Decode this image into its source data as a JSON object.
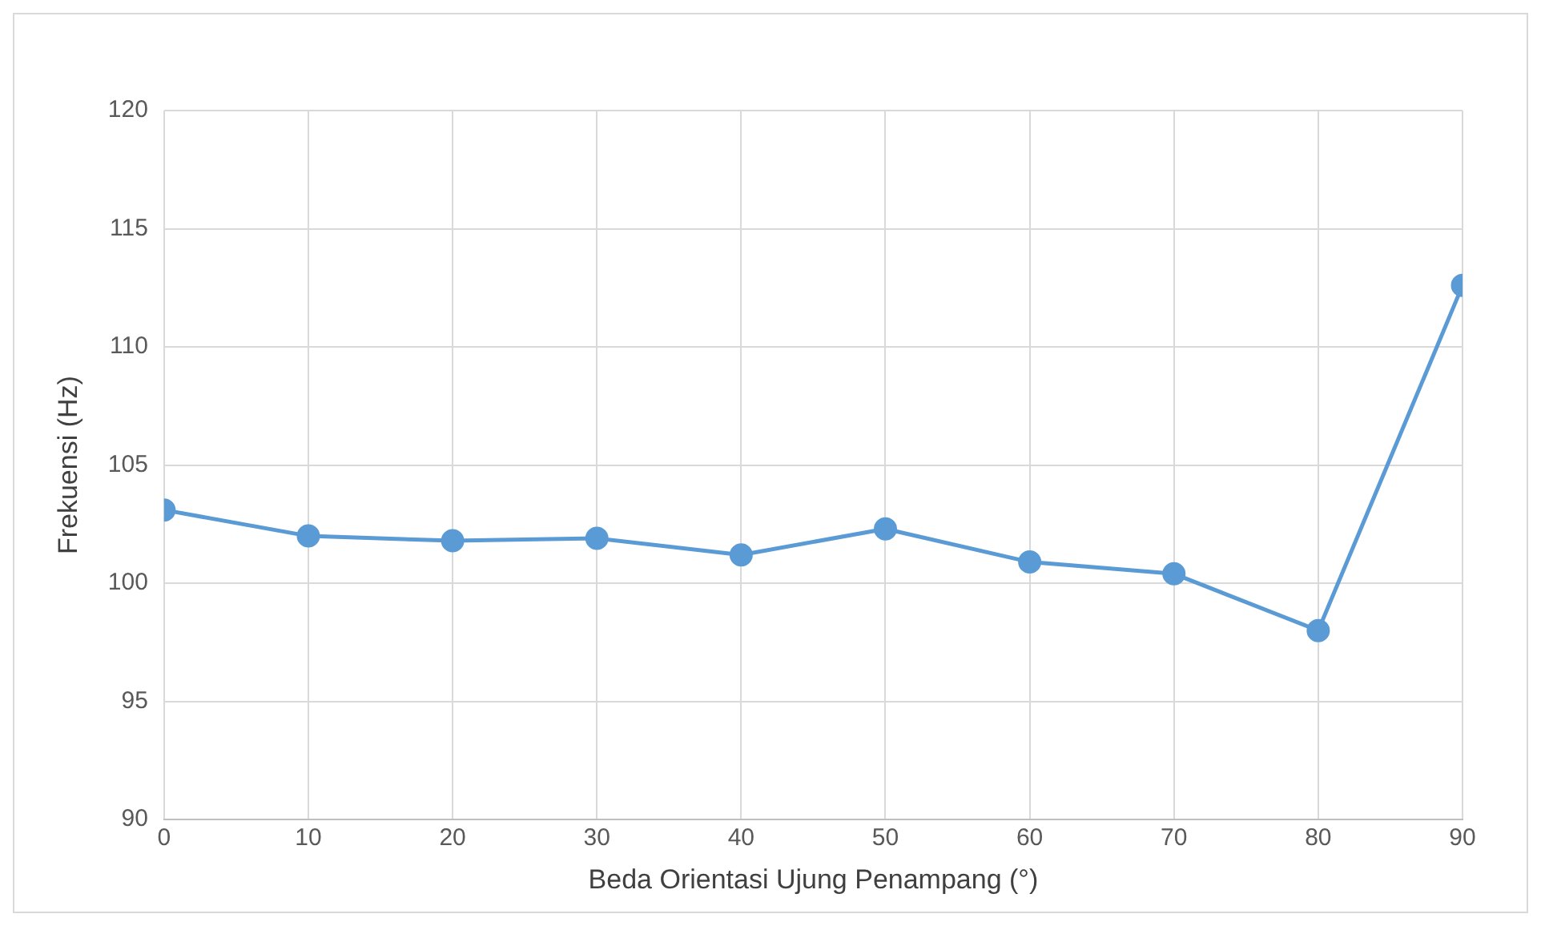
{
  "chart_data": {
    "type": "line",
    "xlabel": "Beda Orientasi Ujung Penampang (°)",
    "ylabel": "Frekuensi (Hz)",
    "x": [
      0,
      10,
      20,
      30,
      40,
      50,
      60,
      70,
      80,
      90
    ],
    "series": [
      {
        "color": "#5b9bd5",
        "values": [
          103.1,
          102.0,
          101.8,
          101.9,
          101.2,
          102.3,
          100.9,
          100.4,
          98.0,
          112.6
        ]
      }
    ],
    "xlim": [
      0,
      90
    ],
    "xticks": [
      0,
      10,
      20,
      30,
      40,
      50,
      60,
      70,
      80,
      90
    ],
    "ylim": [
      90,
      120
    ],
    "yticks": [
      90,
      95,
      100,
      105,
      110,
      115,
      120
    ],
    "grid": true,
    "legend": false,
    "marker": "circle",
    "line_style": "solid"
  }
}
